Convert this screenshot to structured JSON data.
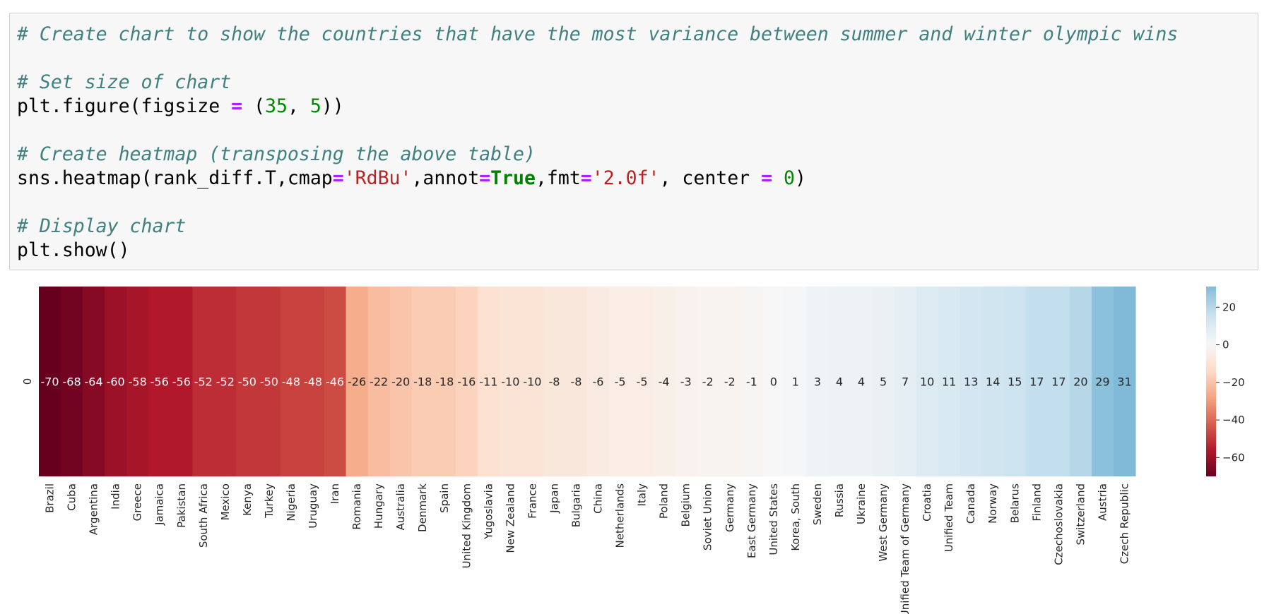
{
  "code": {
    "comment1": "# Create chart to show the countries that have the most variance between summer and winter olympic wins",
    "comment2": "# Set size of chart",
    "line2": {
      "a": "plt.figure(figsize ",
      "eq": "=",
      "b": " (",
      "n1": "35",
      "c": ", ",
      "n2": "5",
      "d": "))"
    },
    "comment3": "# Create heatmap (transposing the above table)",
    "line3": {
      "a": "sns.heatmap(rank_diff.T,cmap",
      "eq1": "=",
      "s1": "'RdBu'",
      "b": ",annot",
      "eq2": "=",
      "kw": "True",
      "c": ",fmt",
      "eq3": "=",
      "s2": "'2.0f'",
      "d": ", center ",
      "eq4": "=",
      "e": " ",
      "n": "0",
      "f": ")"
    },
    "comment4": "# Display chart",
    "line4": "plt.show()"
  },
  "colors": {
    "comment": "#408080",
    "operator": "#aa22ff",
    "number": "#008800",
    "string": "#ba2121",
    "keyword": "#008000",
    "cell_bg": "#f7f7f7"
  },
  "chart_data": {
    "type": "heatmap",
    "colormap": "RdBu",
    "center": 0,
    "row_labels": [
      "0"
    ],
    "categories": [
      "Brazil",
      "Cuba",
      "Argentina",
      "India",
      "Greece",
      "Jamaica",
      "Pakistan",
      "South Africa",
      "Mexico",
      "Kenya",
      "Turkey",
      "Nigeria",
      "Uruguay",
      "Iran",
      "Romania",
      "Hungary",
      "Australia",
      "Denmark",
      "Spain",
      "United Kingdom",
      "Yugoslavia",
      "New Zealand",
      "France",
      "Japan",
      "Bulgaria",
      "China",
      "Netherlands",
      "Italy",
      "Poland",
      "Belgium",
      "Soviet Union",
      "Germany",
      "East Germany",
      "United States",
      "Korea, South",
      "Sweden",
      "Russia",
      "Ukraine",
      "West Germany",
      "Unified Team of Germany",
      "Croatia",
      "Unified Team",
      "Canada",
      "Norway",
      "Belarus",
      "Finland",
      "Czechoslovakia",
      "Switzerland",
      "Austria",
      "Czech Republic"
    ],
    "values": [
      -70,
      -68,
      -64,
      -60,
      -58,
      -56,
      -56,
      -52,
      -52,
      -50,
      -50,
      -48,
      -48,
      -46,
      -26,
      -22,
      -20,
      -18,
      -18,
      -16,
      -11,
      -10,
      -10,
      -8,
      -8,
      -6,
      -5,
      -5,
      -4,
      -3,
      -2,
      -2,
      -1,
      0,
      1,
      3,
      4,
      4,
      5,
      7,
      10,
      11,
      13,
      14,
      15,
      17,
      17,
      20,
      29,
      31
    ],
    "colorbar": {
      "ticks": [
        20,
        0,
        -20,
        -40,
        -60
      ],
      "range": [
        -70,
        31
      ]
    }
  }
}
